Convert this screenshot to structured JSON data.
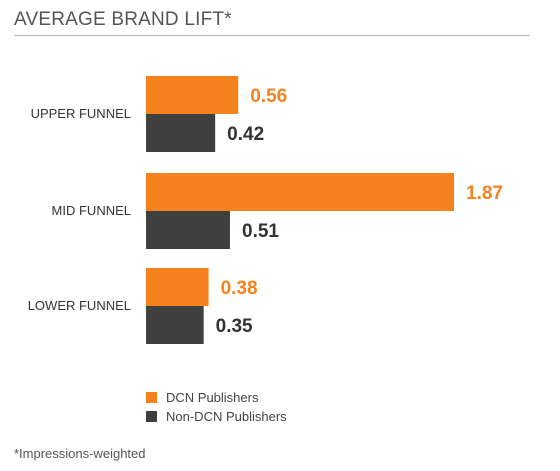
{
  "colors": {
    "dcn": "#f5821f",
    "non_dcn": "#3f3f3f",
    "category_label": "#333333",
    "title": "#555555"
  },
  "chart_data": {
    "type": "bar",
    "orientation": "horizontal",
    "title": "AVERAGE BRAND LIFT*",
    "categories": [
      "UPPER FUNNEL",
      "MID FUNNEL",
      "LOWER FUNNEL"
    ],
    "series": [
      {
        "name": "DCN Publishers",
        "values": [
          0.56,
          1.87,
          0.38
        ],
        "color": "#f5821f"
      },
      {
        "name": "Non-DCN Publishers",
        "values": [
          0.42,
          0.51,
          0.35
        ],
        "color": "#3f3f3f"
      }
    ],
    "value_labels": [
      [
        "0.56",
        "1.87",
        "0.38"
      ],
      [
        "0.42",
        "0.51",
        "0.35"
      ]
    ],
    "legend_position": "bottom-left",
    "grid": false
  },
  "footnote": "*Impressions-weighted"
}
